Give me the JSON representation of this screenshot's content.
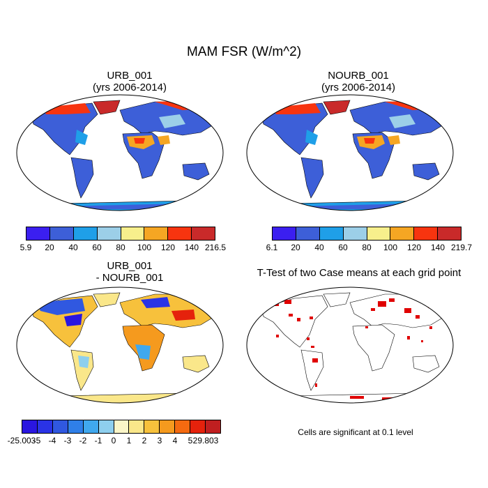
{
  "main_title": "MAM FSR (W/m^2)",
  "panels": {
    "urb": {
      "title_line1": "URB_001",
      "title_line2": "(yrs 2006-2014)"
    },
    "nourb": {
      "title_line1": "NOURB_001",
      "title_line2": "(yrs 2006-2014)"
    },
    "diff": {
      "title_line1": "URB_001",
      "title_line2": "- NOURB_001"
    },
    "ttest": {
      "title": "T-Test of two Case means at each grid point",
      "note": "Cells are significant at 0.1 level"
    }
  },
  "colorbars": {
    "urb": {
      "labels": [
        "5.9",
        "20",
        "40",
        "60",
        "80",
        "100",
        "120",
        "140",
        "216.5"
      ],
      "colors": [
        "#3b1ff0",
        "#3d5fd8",
        "#1f9fe8",
        "#9ccfe8",
        "#f7ef8c",
        "#f5a623",
        "#f7340f",
        "#c92a2a"
      ]
    },
    "nourb": {
      "labels": [
        "6.1",
        "20",
        "40",
        "60",
        "80",
        "100",
        "120",
        "140",
        "219.7"
      ],
      "colors": [
        "#3b1ff0",
        "#3d5fd8",
        "#1f9fe8",
        "#9ccfe8",
        "#f7ef8c",
        "#f5a623",
        "#f7340f",
        "#c92a2a"
      ]
    },
    "diff": {
      "labels": [
        "-25.003",
        "-5",
        "-4",
        "-3",
        "-2",
        "-1",
        "0",
        "1",
        "2",
        "3",
        "4",
        "5",
        "29.803"
      ],
      "colors": [
        "#2a16e0",
        "#2a33e6",
        "#3058e0",
        "#2f7fe8",
        "#40a8ee",
        "#8ecfee",
        "#fbf6c8",
        "#fae78a",
        "#f7c13c",
        "#f59a1e",
        "#f46a10",
        "#e5220c",
        "#c01f20"
      ]
    }
  }
}
